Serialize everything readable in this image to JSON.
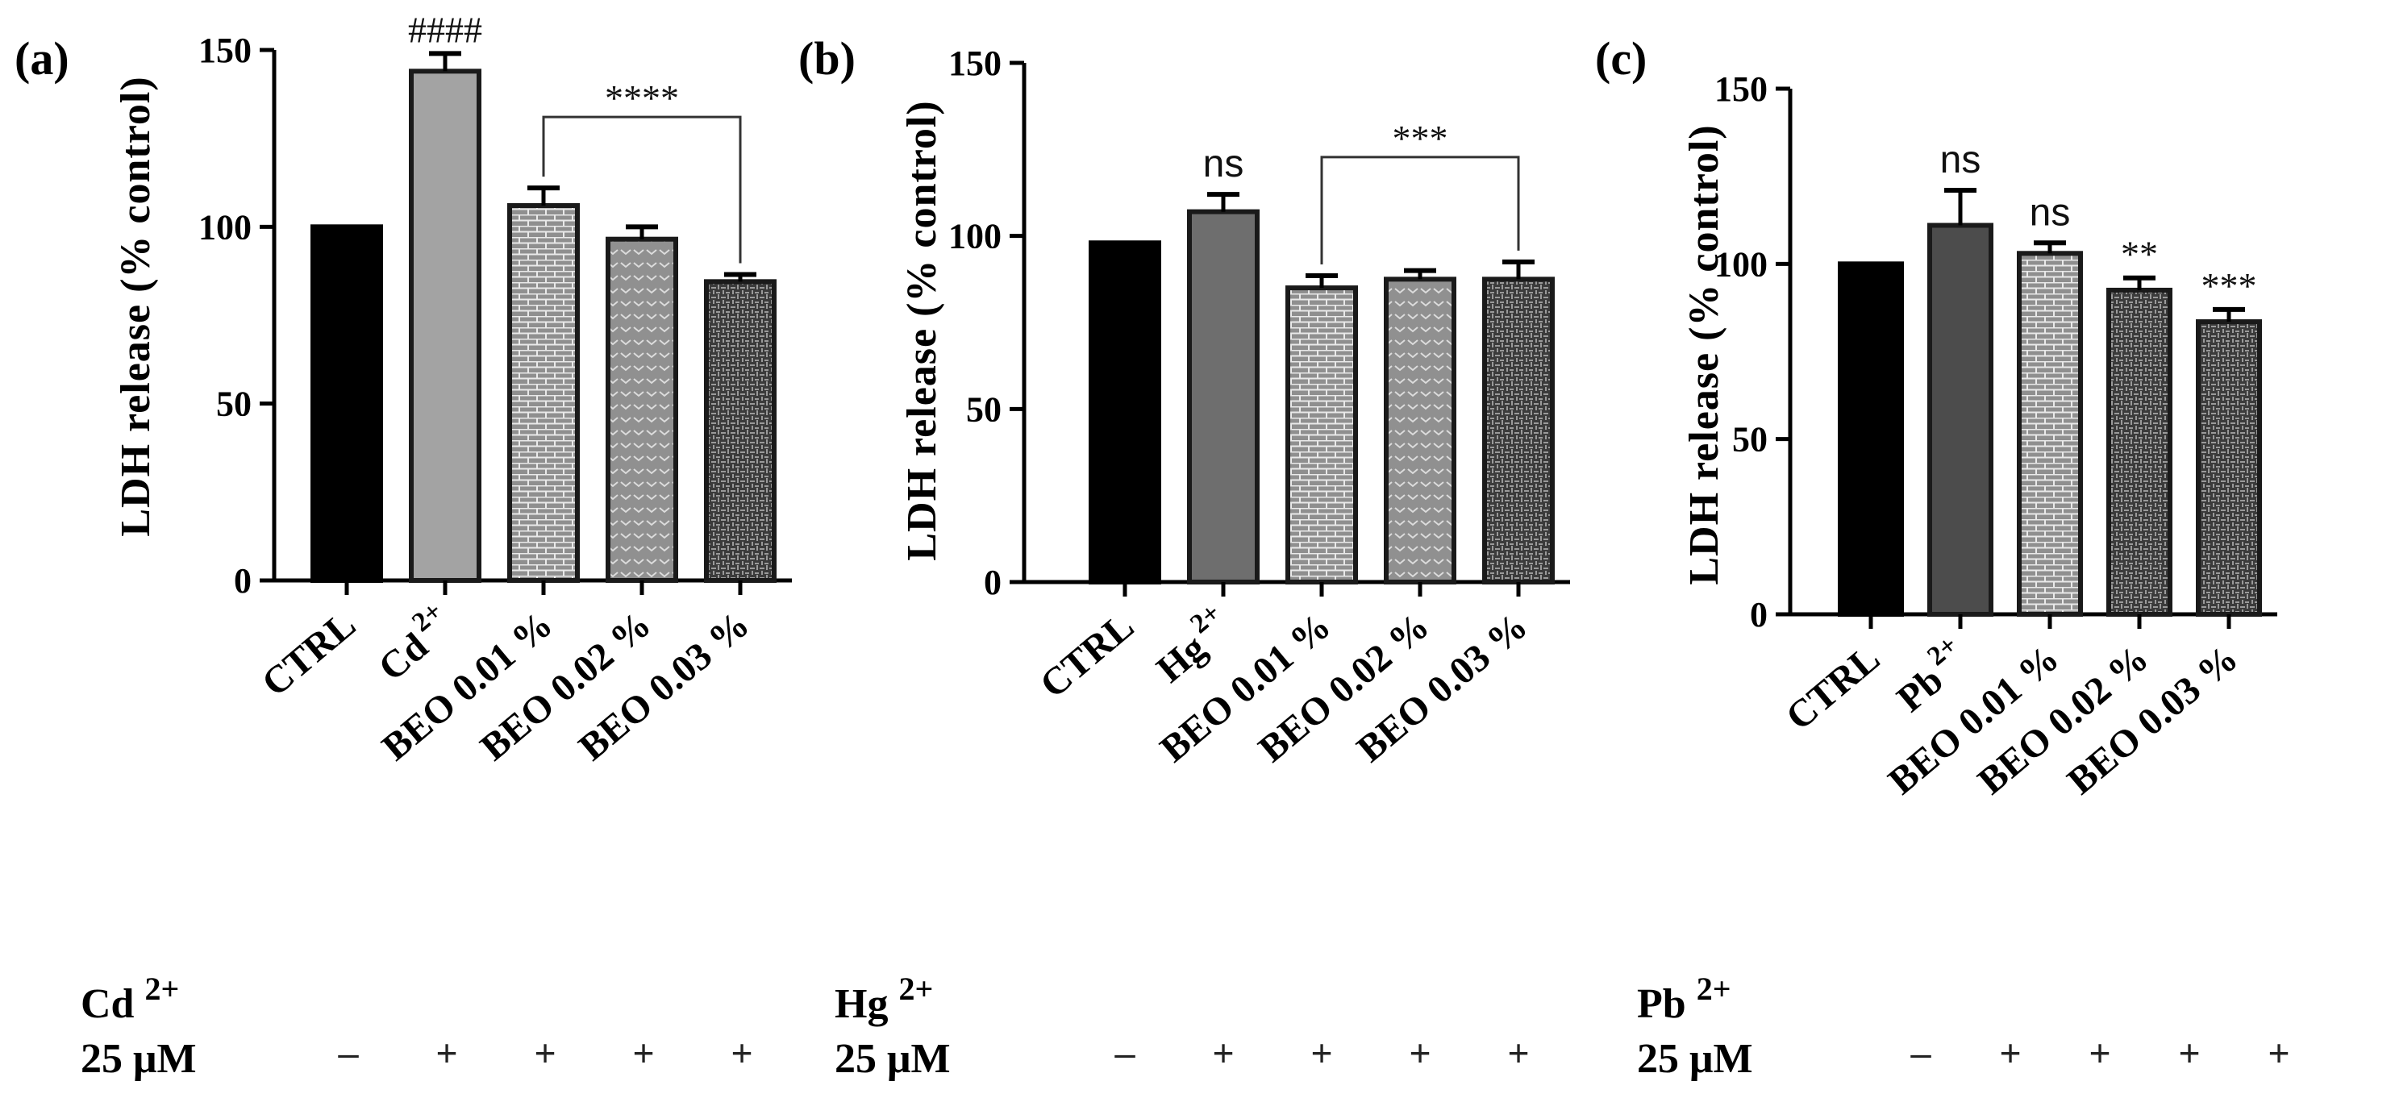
{
  "figure": {
    "type": "bar-chart-panels",
    "colors": {
      "ctrl": "#000000",
      "cd": "#a3a3a3",
      "hg": "#6e6e6e",
      "pb": "#4c4c4c",
      "pattern_light": "#8f8f8f",
      "pattern_dark": "#3b3b3b",
      "edge": "#1a1a1a"
    },
    "treatment_row": {
      "concentration_label": "25 μM",
      "signs": [
        "–",
        "+",
        "+",
        "+",
        "+"
      ]
    }
  },
  "chart_data": [
    {
      "type": "bar",
      "panel_label": "(a)",
      "ylabel": "LDH release (% control)",
      "ylim": [
        0,
        150
      ],
      "yticks": [
        "0",
        "50",
        "100",
        "150"
      ],
      "metal": "Cd",
      "metal_charge": "2+",
      "categories": [
        "CTRL",
        "Cd",
        "BEO 0.01 %",
        "BEO 0.02 %",
        "BEO 0.03 %"
      ],
      "values": [
        100,
        144,
        106,
        96.5,
        84.5
      ],
      "errors": [
        0,
        5,
        5,
        3.5,
        2
      ],
      "patterns": [
        "solid",
        "solid",
        "brick",
        "chevron",
        "weave"
      ],
      "annotations": [
        "",
        "####",
        "",
        "",
        ""
      ],
      "bracket": {
        "from": 2,
        "to": 4,
        "label": "****"
      }
    },
    {
      "type": "bar",
      "panel_label": "(b)",
      "ylabel": "LDH release (% control)",
      "ylim": [
        0,
        150
      ],
      "yticks": [
        "0",
        "50",
        "100",
        "150"
      ],
      "metal": "Hg",
      "metal_charge": "2+",
      "categories": [
        "CTRL",
        "Hg",
        "BEO 0.01 %",
        "BEO 0.02 %",
        "BEO 0.03 %"
      ],
      "values": [
        98,
        107,
        85,
        87.5,
        87.5
      ],
      "errors": [
        0,
        5,
        3.5,
        2.5,
        5
      ],
      "patterns": [
        "solid",
        "solid",
        "brick",
        "chevron",
        "weave"
      ],
      "annotations": [
        "",
        "ns",
        "",
        "",
        ""
      ],
      "bracket": {
        "from": 2,
        "to": 4,
        "label": "***"
      }
    },
    {
      "type": "bar",
      "panel_label": "(c)",
      "ylabel": "LDH release (% control)",
      "ylim": [
        0,
        150
      ],
      "yticks": [
        "0",
        "50",
        "100",
        "150"
      ],
      "metal": "Pb",
      "metal_charge": "2+",
      "categories": [
        "CTRL",
        "Pb",
        "BEO 0.01 %",
        "BEO 0.02 %",
        "BEO 0.03 %"
      ],
      "values": [
        100,
        111,
        103,
        92.5,
        83.5
      ],
      "errors": [
        0,
        10,
        3,
        3.5,
        3.5
      ],
      "patterns": [
        "solid",
        "solid",
        "brick",
        "weave",
        "weave"
      ],
      "annotations": [
        "",
        "ns",
        "ns",
        "**",
        "***"
      ],
      "bracket": null
    }
  ]
}
